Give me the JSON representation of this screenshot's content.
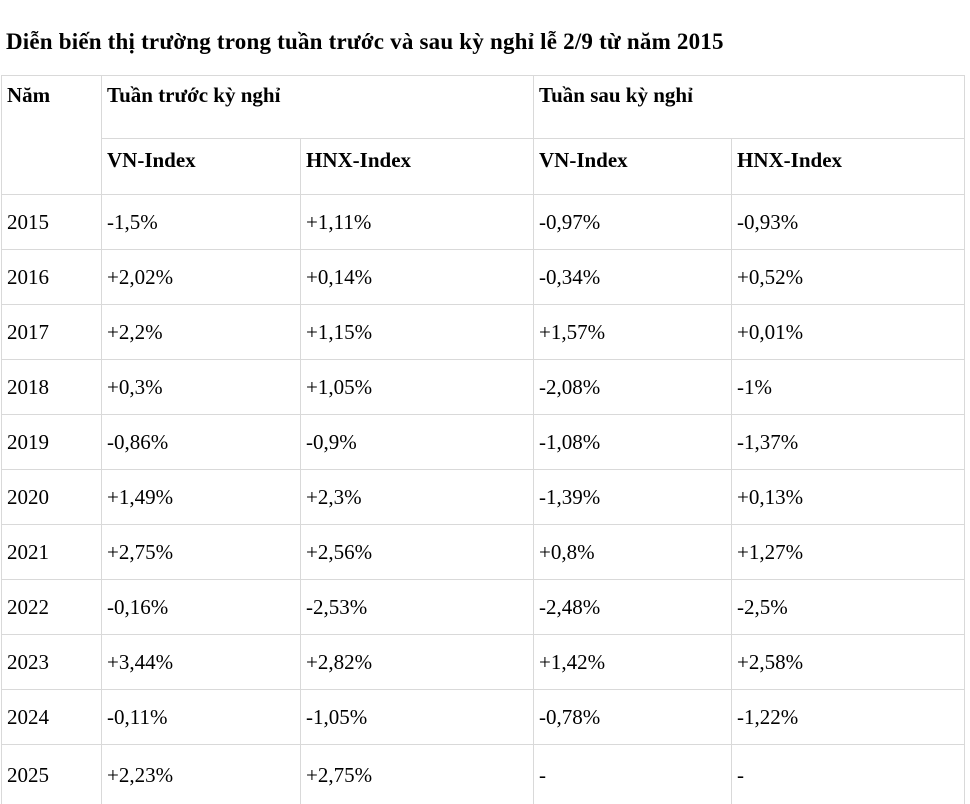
{
  "title": "Diễn biến thị trường trong tuần trước và sau kỳ nghỉ lễ 2/9 từ năm 2015",
  "table": {
    "year_header": "Năm",
    "group_headers": [
      "Tuần trước kỳ nghỉ",
      "Tuần sau kỳ nghỉ"
    ],
    "sub_headers": [
      "VN-Index",
      "HNX-Index",
      "VN-Index",
      "HNX-Index"
    ],
    "rows": [
      {
        "year": "2015",
        "values": [
          "-1,5%",
          "+1,11%",
          "-0,97%",
          "-0,93%"
        ]
      },
      {
        "year": "2016",
        "values": [
          "+2,02%",
          "+0,14%",
          "-0,34%",
          "+0,52%"
        ]
      },
      {
        "year": "2017",
        "values": [
          "+2,2%",
          "+1,15%",
          "+1,57%",
          "+0,01%"
        ]
      },
      {
        "year": "2018",
        "values": [
          "+0,3%",
          "+1,05%",
          "-2,08%",
          "-1%"
        ]
      },
      {
        "year": "2019",
        "values": [
          "-0,86%",
          "-0,9%",
          "-1,08%",
          "-1,37%"
        ]
      },
      {
        "year": "2020",
        "values": [
          "+1,49%",
          "+2,3%",
          "-1,39%",
          "+0,13%"
        ]
      },
      {
        "year": "2021",
        "values": [
          "+2,75%",
          "+2,56%",
          "+0,8%",
          "+1,27%"
        ]
      },
      {
        "year": "2022",
        "values": [
          "-0,16%",
          "-2,53%",
          "-2,48%",
          "-2,5%"
        ]
      },
      {
        "year": "2023",
        "values": [
          "+3,44%",
          "+2,82%",
          "+1,42%",
          "+2,58%"
        ]
      },
      {
        "year": "2024",
        "values": [
          "-0,11%",
          "-1,05%",
          "-0,78%",
          "-1,22%"
        ]
      },
      {
        "year": "2025",
        "values": [
          "+2,23%",
          "+2,75%",
          "-",
          "-"
        ]
      }
    ]
  },
  "chart_data": {
    "type": "table",
    "title": "Diễn biến thị trường trong tuần trước và sau kỳ nghỉ lễ 2/9 từ năm 2015",
    "columns": [
      "Năm",
      "Tuần trước kỳ nghỉ VN-Index",
      "Tuần trước kỳ nghỉ HNX-Index",
      "Tuần sau kỳ nghỉ VN-Index",
      "Tuần sau kỳ nghỉ HNX-Index"
    ],
    "rows": [
      [
        "2015",
        "-1,5%",
        "+1,11%",
        "-0,97%",
        "-0,93%"
      ],
      [
        "2016",
        "+2,02%",
        "+0,14%",
        "-0,34%",
        "+0,52%"
      ],
      [
        "2017",
        "+2,2%",
        "+1,15%",
        "+1,57%",
        "+0,01%"
      ],
      [
        "2018",
        "+0,3%",
        "+1,05%",
        "-2,08%",
        "-1%"
      ],
      [
        "2019",
        "-0,86%",
        "-0,9%",
        "-1,08%",
        "-1,37%"
      ],
      [
        "2020",
        "+1,49%",
        "+2,3%",
        "-1,39%",
        "+0,13%"
      ],
      [
        "2021",
        "+2,75%",
        "+2,56%",
        "+0,8%",
        "+1,27%"
      ],
      [
        "2022",
        "-0,16%",
        "-2,53%",
        "-2,48%",
        "-2,5%"
      ],
      [
        "2023",
        "+3,44%",
        "+2,82%",
        "+1,42%",
        "+2,58%"
      ],
      [
        "2024",
        "-0,11%",
        "-1,05%",
        "-0,78%",
        "-1,22%"
      ],
      [
        "2025",
        "+2,23%",
        "+2,75%",
        "-",
        "-"
      ]
    ]
  },
  "colors": {
    "text": "#000000",
    "border": "#d9d9d9",
    "table_bottom_border": "#2b2b2b",
    "background": "#ffffff"
  }
}
